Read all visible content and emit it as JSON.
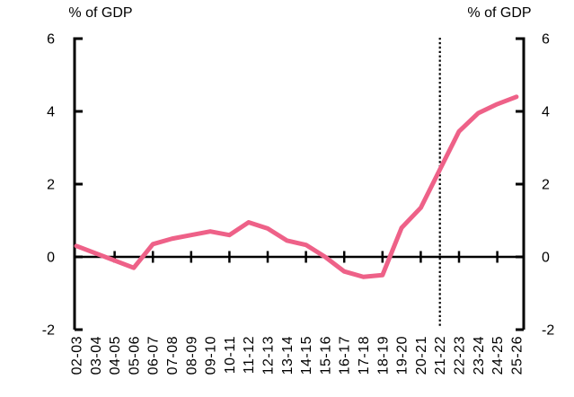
{
  "chart_data": {
    "type": "line",
    "left_axis_title": "% of GDP",
    "right_axis_title": "% of GDP",
    "categories": [
      "02-03",
      "03-04",
      "04-05",
      "05-06",
      "06-07",
      "07-08",
      "08-09",
      "09-10",
      "10-11",
      "11-12",
      "12-13",
      "13-14",
      "14-15",
      "15-16",
      "16-17",
      "17-18",
      "18-19",
      "19-20",
      "20-21",
      "21-22",
      "22-23",
      "23-24",
      "24-25",
      "25-26"
    ],
    "series": [
      {
        "name": "budget-balance-pct-gdp",
        "color": "#ee6188",
        "values": [
          0.3,
          0.1,
          -0.1,
          -0.3,
          0.35,
          0.5,
          0.6,
          0.7,
          0.6,
          0.95,
          0.78,
          0.45,
          0.33,
          0.0,
          -0.4,
          -0.55,
          -0.5,
          0.8,
          1.35,
          2.4,
          3.45,
          3.95,
          4.2,
          4.4
        ]
      }
    ],
    "ylim": [
      -2,
      6
    ],
    "yticks": [
      6,
      4,
      2,
      0,
      -2
    ],
    "x_tick_categories": [
      "04-05",
      "06-07",
      "08-09",
      "10-11",
      "12-13",
      "14-15",
      "16-17",
      "18-19",
      "20-21",
      "22-23",
      "24-25"
    ],
    "divider_category": "21-22",
    "divider_style": "dotted",
    "axis_color": "#000000",
    "grid": false,
    "legend": false
  }
}
